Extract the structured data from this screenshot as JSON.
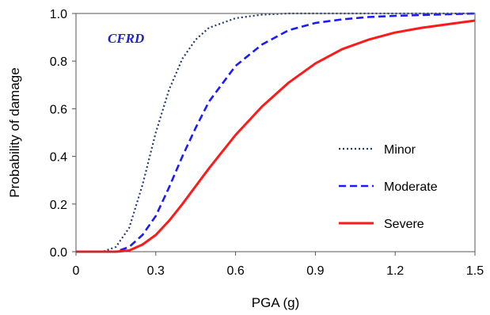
{
  "chart_data": {
    "type": "line",
    "title": "",
    "xlabel": "PGA (g)",
    "ylabel": "Probability of damage",
    "xlim": [
      0,
      1.5
    ],
    "ylim": [
      0,
      1.0
    ],
    "xticks": [
      0,
      0.3,
      0.6,
      0.9,
      1.2,
      1.5
    ],
    "yticks": [
      0.0,
      0.2,
      0.4,
      0.6,
      0.8,
      1.0
    ],
    "xtick_labels": [
      "0",
      "0.3",
      "0.6",
      "0.9",
      "1.2",
      "1.5"
    ],
    "ytick_labels": [
      "0.0",
      "0.2",
      "0.4",
      "0.6",
      "0.8",
      "1.0"
    ],
    "grid": false,
    "legend_position": "right-center",
    "annotation": {
      "text": "CFRD",
      "color": "#2222cc"
    },
    "series": [
      {
        "name": "Minor",
        "color": "#1f3a6e",
        "style": "dotted",
        "x": [
          0.1,
          0.15,
          0.2,
          0.25,
          0.3,
          0.35,
          0.4,
          0.45,
          0.5,
          0.6,
          0.7,
          0.8,
          0.9,
          1.0,
          1.2,
          1.5
        ],
        "y": [
          0.0,
          0.02,
          0.1,
          0.28,
          0.5,
          0.68,
          0.81,
          0.89,
          0.94,
          0.98,
          0.995,
          1.0,
          1.0,
          1.0,
          1.0,
          1.0
        ]
      },
      {
        "name": "Moderate",
        "color": "#1a1aff",
        "style": "dashed",
        "x": [
          0.15,
          0.2,
          0.25,
          0.3,
          0.35,
          0.4,
          0.45,
          0.5,
          0.6,
          0.7,
          0.8,
          0.9,
          1.0,
          1.1,
          1.2,
          1.35,
          1.5
        ],
        "y": [
          0.0,
          0.02,
          0.07,
          0.15,
          0.27,
          0.4,
          0.52,
          0.63,
          0.78,
          0.87,
          0.93,
          0.96,
          0.975,
          0.985,
          0.99,
          0.995,
          1.0
        ]
      },
      {
        "name": "Severe",
        "color": "#ff1a1a",
        "style": "solid",
        "x": [
          0.15,
          0.2,
          0.25,
          0.3,
          0.35,
          0.4,
          0.5,
          0.6,
          0.7,
          0.8,
          0.9,
          1.0,
          1.1,
          1.2,
          1.3,
          1.4,
          1.5
        ],
        "y": [
          0.0,
          0.005,
          0.03,
          0.07,
          0.13,
          0.2,
          0.35,
          0.49,
          0.61,
          0.71,
          0.79,
          0.85,
          0.89,
          0.92,
          0.94,
          0.955,
          0.97
        ]
      }
    ]
  }
}
